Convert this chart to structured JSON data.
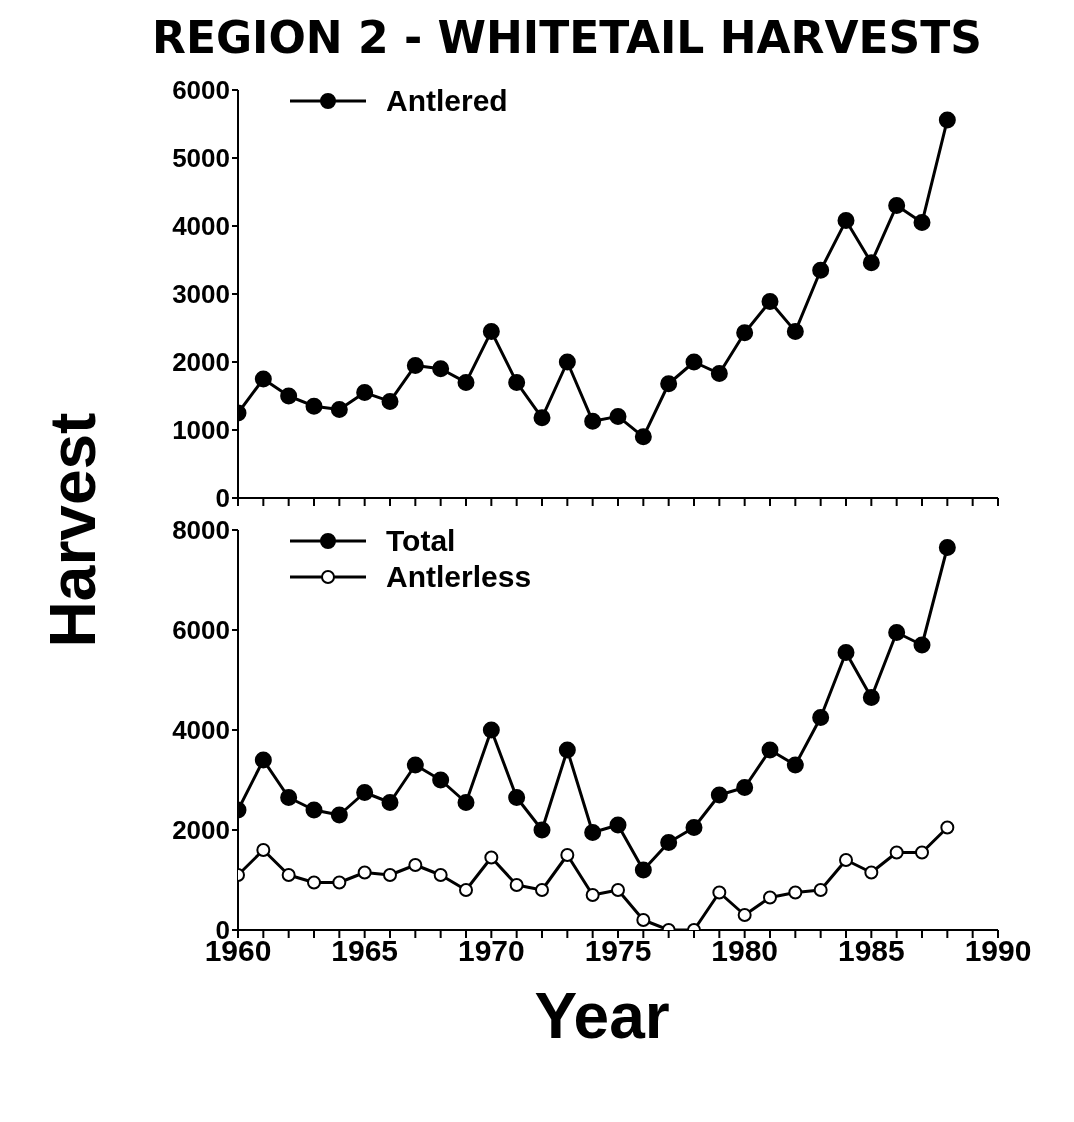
{
  "chart_data": [
    {
      "type": "line",
      "title": "REGION 2 - WHITETAIL HARVESTS",
      "ylabel": "Harvest",
      "x": [
        1960,
        1961,
        1962,
        1963,
        1964,
        1965,
        1966,
        1967,
        1968,
        1969,
        1970,
        1971,
        1972,
        1973,
        1974,
        1975,
        1976,
        1977,
        1978,
        1979,
        1980,
        1981,
        1982,
        1983,
        1984,
        1985,
        1986,
        1987,
        1988
      ],
      "series": [
        {
          "name": "Antlered",
          "color": "#000000",
          "values": [
            1250,
            1750,
            1500,
            1350,
            1300,
            1550,
            1420,
            1950,
            1900,
            1700,
            2450,
            1700,
            1180,
            2000,
            1130,
            1200,
            900,
            1680,
            2000,
            1830,
            2430,
            2890,
            2450,
            3350,
            4080,
            3460,
            4300,
            4050,
            5560
          ]
        }
      ],
      "xlim": [
        1960,
        1990
      ],
      "xticks": [
        1960,
        1965,
        1970,
        1975,
        1980,
        1985,
        1990
      ],
      "ylim": [
        0,
        6000
      ],
      "yticks": [
        0,
        1000,
        2000,
        3000,
        4000,
        5000,
        6000
      ],
      "tick_labels": "y",
      "legend": "top left",
      "marker": "circle",
      "line_style": "solid"
    },
    {
      "type": "line",
      "xlabel": "Year",
      "x": [
        1960,
        1961,
        1962,
        1963,
        1964,
        1965,
        1966,
        1967,
        1968,
        1969,
        1970,
        1971,
        1972,
        1973,
        1974,
        1975,
        1976,
        1977,
        1978,
        1979,
        1980,
        1981,
        1982,
        1983,
        1984,
        1985,
        1986,
        1987,
        1988
      ],
      "series": [
        {
          "name": "Total",
          "color": "#000000",
          "values": [
            2400,
            3400,
            2650,
            2400,
            2300,
            2750,
            2550,
            3300,
            3000,
            2550,
            4000,
            2650,
            2000,
            3600,
            1950,
            2100,
            1200,
            1750,
            2050,
            2700,
            2850,
            3600,
            3300,
            4250,
            5550,
            4650,
            5950,
            5700,
            7650
          ]
        },
        {
          "name": "Antlerless",
          "color": "#000000",
          "marker": "open circle",
          "values": [
            1100,
            1600,
            1100,
            950,
            950,
            1150,
            1100,
            1300,
            1100,
            800,
            1450,
            900,
            800,
            1500,
            700,
            800,
            200,
            0,
            0,
            750,
            300,
            650,
            750,
            800,
            1400,
            1150,
            1550,
            1550,
            2050
          ]
        }
      ],
      "xlim": [
        1960,
        1990
      ],
      "xticks": [
        1960,
        1965,
        1970,
        1975,
        1980,
        1985,
        1990
      ],
      "ylim": [
        0,
        8000
      ],
      "yticks": [
        0,
        2000,
        4000,
        6000,
        8000
      ],
      "legend": "top left",
      "marker": "circle",
      "line_style": "solid"
    }
  ]
}
